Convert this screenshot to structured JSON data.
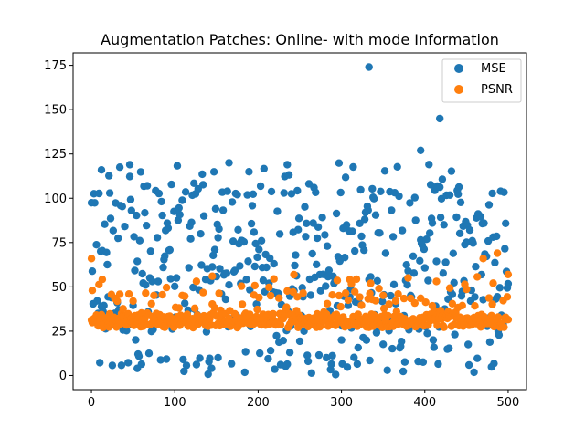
{
  "chart_data": {
    "type": "scatter",
    "title": "Augmentation Patches: Online- with mode Information",
    "xlabel": "",
    "ylabel": "",
    "xlim": [
      -22,
      522
    ],
    "ylim": [
      -8,
      182
    ],
    "xticks": [
      0,
      100,
      200,
      300,
      400,
      500
    ],
    "yticks": [
      0,
      25,
      50,
      75,
      100,
      125,
      150,
      175
    ],
    "grid": false,
    "legend_position": "top-right",
    "series": [
      {
        "name": "MSE",
        "color": "#1f77b4",
        "n_points": 501,
        "notable_points": [
          {
            "x": 333,
            "y": 174
          },
          {
            "x": 418,
            "y": 145
          },
          {
            "x": 395,
            "y": 127
          },
          {
            "x": 46,
            "y": 119
          },
          {
            "x": 165,
            "y": 120
          },
          {
            "x": 235,
            "y": 119
          },
          {
            "x": 12,
            "y": 116
          },
          {
            "x": 55,
            "y": 4
          },
          {
            "x": 152,
            "y": 10
          },
          {
            "x": 238,
            "y": 13
          },
          {
            "x": 300,
            "y": 20
          }
        ]
      },
      {
        "name": "PSNR",
        "color": "#ff7f0e",
        "n_points": 501,
        "notable_points": [
          {
            "x": 0,
            "y": 66
          },
          {
            "x": 1,
            "y": 48
          },
          {
            "x": 487,
            "y": 69
          },
          {
            "x": 470,
            "y": 66
          },
          {
            "x": 500,
            "y": 57
          },
          {
            "x": 145,
            "y": 56
          },
          {
            "x": 50,
            "y": 42
          },
          {
            "x": 215,
            "y": 45
          },
          {
            "x": 335,
            "y": 52
          },
          {
            "x": 380,
            "y": 55
          }
        ]
      }
    ]
  }
}
